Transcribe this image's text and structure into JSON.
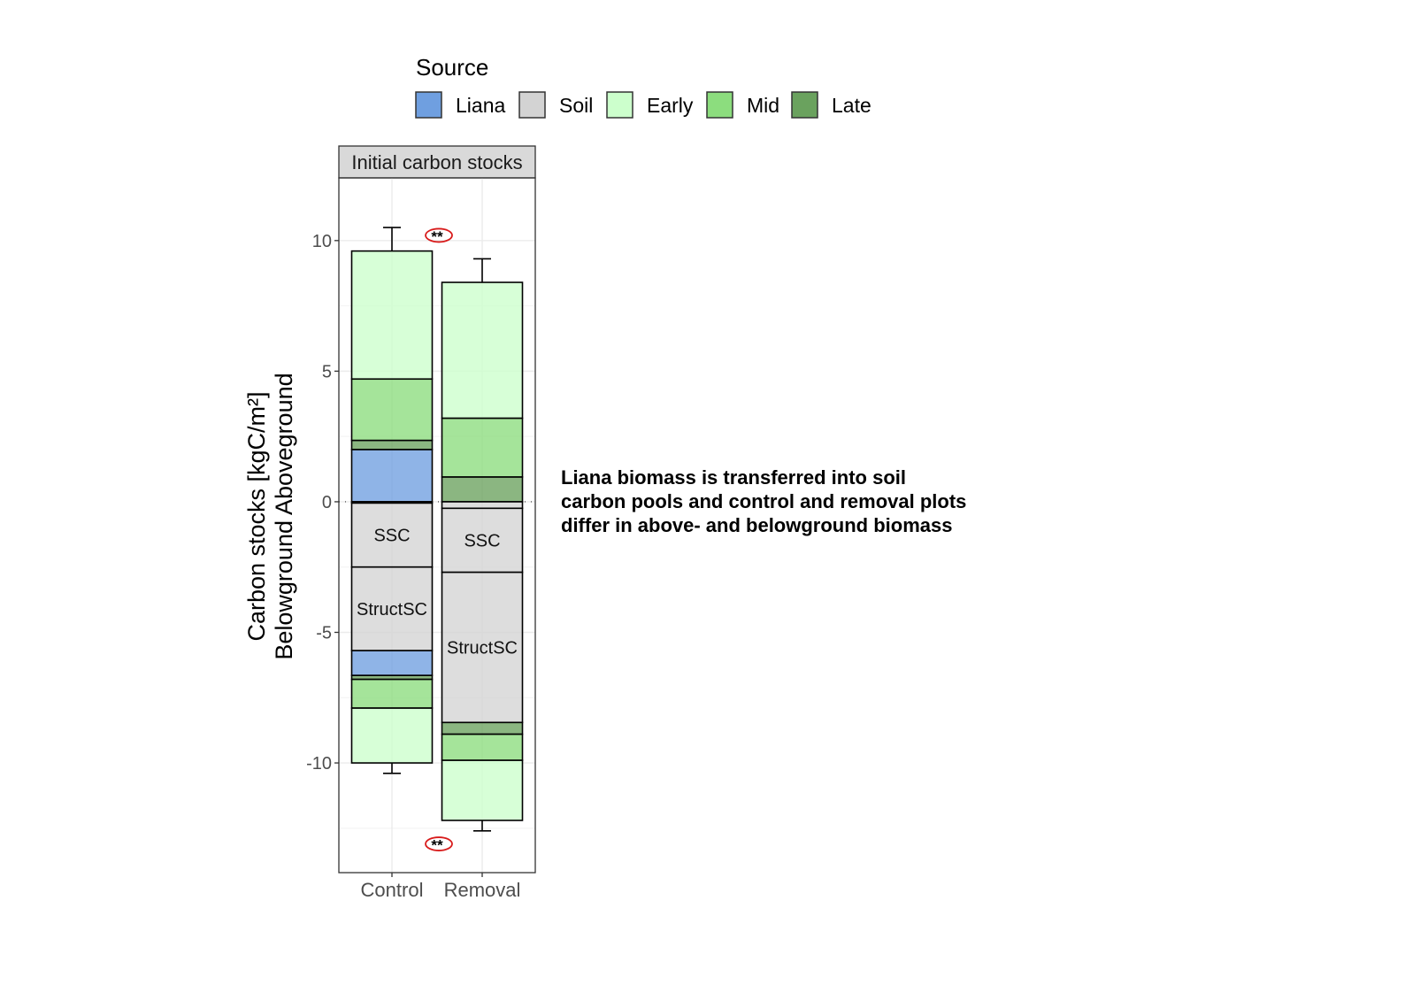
{
  "chart_data": {
    "type": "bar",
    "stacked": true,
    "legend": {
      "title": "Source",
      "position": "top",
      "entries": [
        {
          "name": "Liana",
          "color": "#6f9fe0"
        },
        {
          "name": "Soil",
          "color": "#d3d3d3"
        },
        {
          "name": "Early",
          "color": "#ccffcc"
        },
        {
          "name": "Mid",
          "color": "#8cdd7e"
        },
        {
          "name": "Late",
          "color": "#6aa25e"
        }
      ]
    },
    "panel_title": "Initial carbon stocks",
    "ylabel_lines": [
      "Carbon stocks [kgC/m²]",
      "Belowground   Aboveground"
    ],
    "xlabel": "",
    "categories": [
      "Control",
      "Removal"
    ],
    "ylim": [
      -14.2,
      12.4
    ],
    "yticks": [
      10,
      5,
      0,
      -5,
      -10
    ],
    "ytick_labels": [
      "10",
      "5",
      "0",
      "-5",
      "-10"
    ],
    "grid": true,
    "bars": [
      {
        "category": "Control",
        "segments": [
          {
            "source": "Liana",
            "y0": 0,
            "y1": 2.0
          },
          {
            "source": "Late",
            "y0": 2.0,
            "y1": 2.35
          },
          {
            "source": "Mid",
            "y0": 2.35,
            "y1": 4.7
          },
          {
            "source": "Early",
            "y0": 4.7,
            "y1": 9.6
          },
          {
            "source": "Soil",
            "y0": -0.05,
            "y1": 0
          },
          {
            "source": "Soil",
            "y0": -2.5,
            "y1": -0.05,
            "label": "SSC"
          },
          {
            "source": "Soil",
            "y0": -5.7,
            "y1": -2.5,
            "label": "StructSC"
          },
          {
            "source": "Liana",
            "y0": -6.65,
            "y1": -5.7
          },
          {
            "source": "Late",
            "y0": -6.8,
            "y1": -6.65
          },
          {
            "source": "Mid",
            "y0": -7.9,
            "y1": -6.8
          },
          {
            "source": "Early",
            "y0": -10.0,
            "y1": -7.9
          }
        ],
        "error_top": 10.5,
        "error_bottom": -10.4
      },
      {
        "category": "Removal",
        "segments": [
          {
            "source": "Late",
            "y0": 0,
            "y1": 0.95
          },
          {
            "source": "Mid",
            "y0": 0.95,
            "y1": 3.2
          },
          {
            "source": "Early",
            "y0": 3.2,
            "y1": 8.4
          },
          {
            "source": "Soil",
            "y0": -0.25,
            "y1": 0
          },
          {
            "source": "Soil",
            "y0": -2.7,
            "y1": -0.25,
            "label": "SSC"
          },
          {
            "source": "Soil",
            "y0": -8.45,
            "y1": -2.7,
            "label": "StructSC"
          },
          {
            "source": "Late",
            "y0": -8.9,
            "y1": -8.45
          },
          {
            "source": "Mid",
            "y0": -9.9,
            "y1": -8.9
          },
          {
            "source": "Early",
            "y0": -12.2,
            "y1": -9.9
          }
        ],
        "error_top": 9.3,
        "error_bottom": -12.6
      }
    ],
    "significance": [
      {
        "text": "**",
        "y": 10.2
      },
      {
        "text": "**",
        "y": -13.1
      }
    ]
  },
  "annotation": "Liana biomass is transferred into soil carbon pools and control and removal plots differ in above- and belowground biomass"
}
